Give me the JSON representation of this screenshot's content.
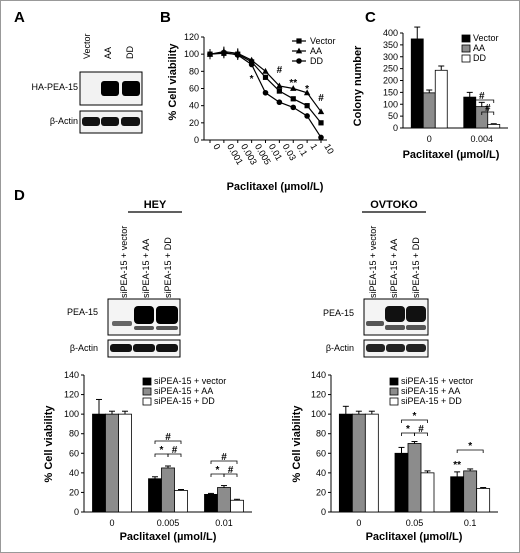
{
  "panels": {
    "A": {
      "letter": "A",
      "lanes": [
        "Vector",
        "AA",
        "DD"
      ],
      "rows": [
        "HA-PEA-15",
        "β-Actin"
      ]
    },
    "D": {
      "letter": "D",
      "blots": [
        {
          "title": "HEY",
          "lanes": [
            "siPEA-15 + vector",
            "siPEA-15 + AA",
            "siPEA-15 + DD"
          ],
          "rows": [
            "PEA-15",
            "β-Actin"
          ]
        },
        {
          "title": "OVTOKO",
          "lanes": [
            "siPEA-15 + vector",
            "siPEA-15 + AA",
            "siPEA-15 + DD"
          ],
          "rows": [
            "PEA-15",
            "β-Actin"
          ]
        }
      ]
    }
  },
  "chart_data": [
    {
      "id": "B",
      "letter": "B",
      "type": "line",
      "ylabel": "% Cell viability",
      "xlabel": "Paclitaxel (µmol/L)",
      "x": [
        "0",
        "0.001",
        "0.003",
        "0.005",
        "0.01",
        "0.03",
        "0.1",
        "1",
        "10"
      ],
      "ylim": [
        0,
        120
      ],
      "yticks": [
        0,
        20,
        40,
        60,
        80,
        100,
        120
      ],
      "legend": "top-right",
      "series": [
        {
          "name": "Vector",
          "marker": "square",
          "values": [
            100,
            101,
            100,
            91,
            73,
            57,
            48,
            40,
            20
          ]
        },
        {
          "name": "AA",
          "marker": "triangle",
          "values": [
            100,
            103,
            101,
            93,
            80,
            63,
            60,
            55,
            33
          ]
        },
        {
          "name": "DD",
          "marker": "circle",
          "values": [
            100,
            102,
            99,
            88,
            55,
            44,
            38,
            28,
            3
          ]
        }
      ],
      "annotations": [
        {
          "x": "0.005",
          "text": "*"
        },
        {
          "x": "0.03",
          "text": "#"
        },
        {
          "x": "0.1",
          "text": "**"
        },
        {
          "x": "1",
          "text": "*"
        },
        {
          "x": "10",
          "text": "#"
        }
      ]
    },
    {
      "id": "C",
      "letter": "C",
      "type": "bar",
      "ylabel": "Colony number",
      "xlabel": "Paclitaxel (µmol/L)",
      "categories": [
        "0",
        "0.004"
      ],
      "ylim": [
        0,
        400
      ],
      "yticks": [
        0,
        50,
        100,
        150,
        200,
        250,
        300,
        350,
        400
      ],
      "legend": "top-right",
      "series": [
        {
          "name": "Vector",
          "color": "#000000",
          "values": [
            375,
            130
          ],
          "errors": [
            50,
            20
          ]
        },
        {
          "name": "AA",
          "color": "#8c8c8c",
          "values": [
            148,
            90
          ],
          "errors": [
            12,
            18
          ]
        },
        {
          "name": "DD",
          "color": "#ffffff",
          "values": [
            243,
            15
          ],
          "errors": [
            18,
            3
          ]
        }
      ],
      "annotations": [
        "#",
        "#"
      ]
    },
    {
      "id": "D1",
      "type": "bar",
      "ylabel": "% Cell viability",
      "xlabel": "Paclitaxel (µmol/L)",
      "categories": [
        "0",
        "0.005",
        "0.01"
      ],
      "ylim": [
        0,
        140
      ],
      "yticks": [
        0,
        20,
        40,
        60,
        80,
        100,
        120,
        140
      ],
      "legend": "top-right",
      "series": [
        {
          "name": "siPEA-15 + vector",
          "color": "#000000",
          "values": [
            100,
            34,
            18
          ],
          "errors": [
            15,
            2,
            1
          ]
        },
        {
          "name": "siPEA-15 + AA",
          "color": "#8c8c8c",
          "values": [
            100,
            45,
            25
          ],
          "errors": [
            3,
            2,
            2
          ]
        },
        {
          "name": "siPEA-15 + DD",
          "color": "#ffffff",
          "values": [
            100,
            22,
            12
          ],
          "errors": [
            3,
            1,
            1
          ]
        }
      ],
      "annotations": [
        "*",
        "#",
        "#",
        "*",
        "#",
        "#"
      ]
    },
    {
      "id": "D2",
      "type": "bar",
      "ylabel": "% Cell viability",
      "xlabel": "Paclitaxel (µmol/L)",
      "categories": [
        "0",
        "0.05",
        "0.1"
      ],
      "ylim": [
        0,
        140
      ],
      "yticks": [
        0,
        20,
        40,
        60,
        80,
        100,
        120,
        140
      ],
      "legend": "top-right",
      "series": [
        {
          "name": "siPEA-15 + vector",
          "color": "#000000",
          "values": [
            100,
            60,
            36
          ],
          "errors": [
            8,
            6,
            5
          ]
        },
        {
          "name": "siPEA-15 + AA",
          "color": "#8c8c8c",
          "values": [
            100,
            70,
            42
          ],
          "errors": [
            3,
            2,
            2
          ]
        },
        {
          "name": "siPEA-15 + DD",
          "color": "#ffffff",
          "values": [
            100,
            40,
            24
          ],
          "errors": [
            3,
            2,
            1
          ]
        }
      ],
      "annotations": [
        "*",
        "*",
        "#",
        "*",
        "**"
      ]
    }
  ]
}
